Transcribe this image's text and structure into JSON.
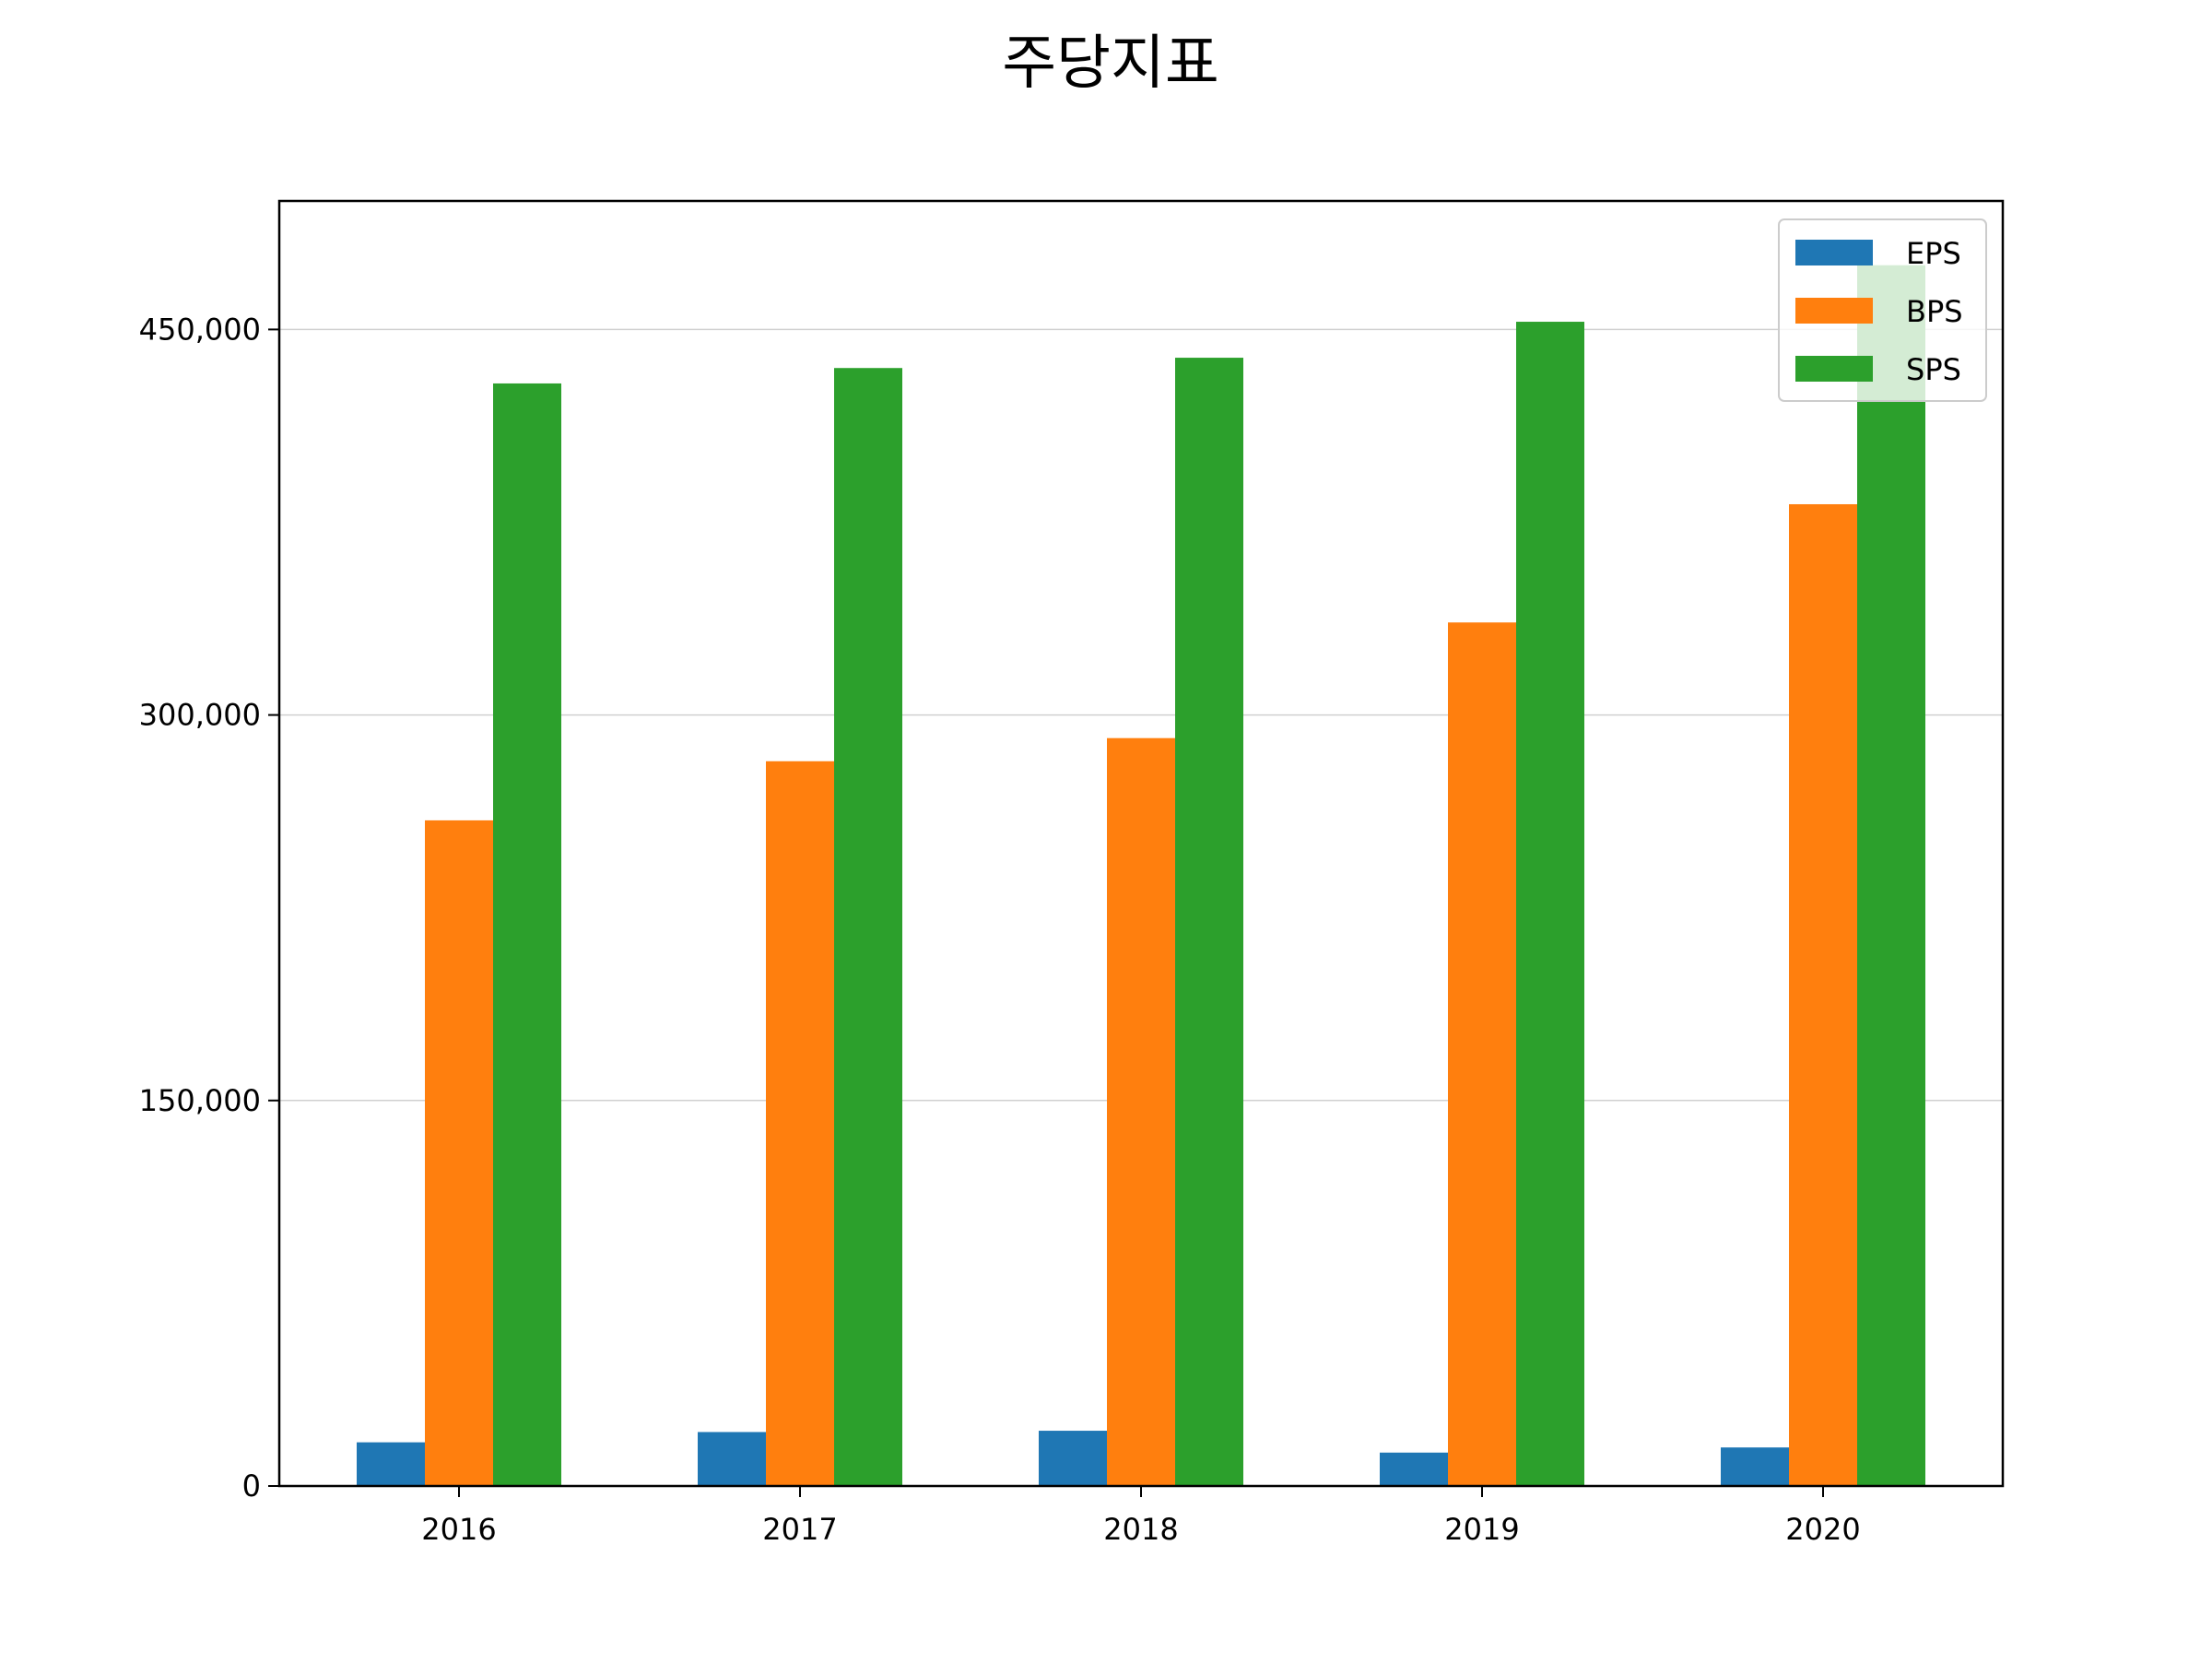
{
  "chart_data": {
    "type": "bar",
    "title": "주당지표",
    "xlabel": "",
    "ylabel": "",
    "categories": [
      "2016",
      "2017",
      "2018",
      "2019",
      "2020"
    ],
    "series": [
      {
        "name": "EPS",
        "color": "#1f77b4",
        "values": [
          17000,
          21000,
          21500,
          13000,
          15000
        ]
      },
      {
        "name": "BPS",
        "color": "#ff7f0e",
        "values": [
          259000,
          282000,
          291000,
          336000,
          382000
        ]
      },
      {
        "name": "SPS",
        "color": "#2ca02c",
        "values": [
          429000,
          435000,
          439000,
          453000,
          475000
        ]
      }
    ],
    "ylim": [
      0,
      500000
    ],
    "yticks": [
      0,
      150000,
      300000,
      450000
    ],
    "ytick_labels": [
      "0",
      "150,000",
      "300,000",
      "450,000"
    ],
    "grid": "horizontal",
    "legend_position": "top-right"
  }
}
